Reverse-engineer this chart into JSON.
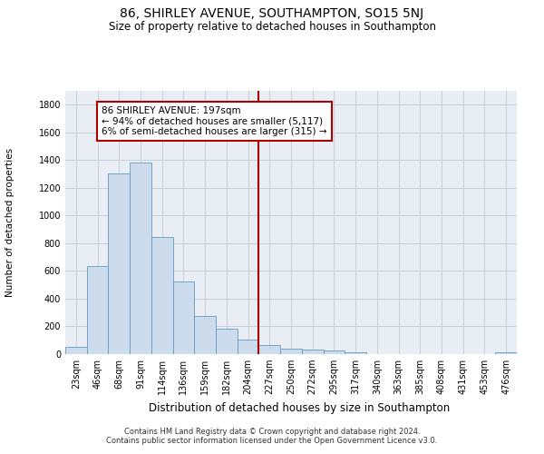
{
  "title": "86, SHIRLEY AVENUE, SOUTHAMPTON, SO15 5NJ",
  "subtitle": "Size of property relative to detached houses in Southampton",
  "xlabel": "Distribution of detached houses by size in Southampton",
  "ylabel": "Number of detached properties",
  "bin_labels": [
    "23sqm",
    "46sqm",
    "68sqm",
    "91sqm",
    "114sqm",
    "136sqm",
    "159sqm",
    "182sqm",
    "204sqm",
    "227sqm",
    "250sqm",
    "272sqm",
    "295sqm",
    "317sqm",
    "340sqm",
    "363sqm",
    "385sqm",
    "408sqm",
    "431sqm",
    "453sqm",
    "476sqm"
  ],
  "bar_values": [
    50,
    635,
    1305,
    1380,
    845,
    525,
    275,
    182,
    105,
    65,
    38,
    35,
    28,
    15,
    0,
    0,
    0,
    0,
    0,
    0,
    15
  ],
  "bar_color": "#ccdcec",
  "bar_edgecolor": "#6699bb",
  "vline_x": 8.5,
  "vline_color": "#aa0000",
  "annotation_text": "86 SHIRLEY AVENUE: 197sqm\n← 94% of detached houses are smaller (5,117)\n6% of semi-detached houses are larger (315) →",
  "annotation_box_color": "#aa0000",
  "ylim": [
    0,
    1900
  ],
  "yticks": [
    0,
    200,
    400,
    600,
    800,
    1000,
    1200,
    1400,
    1600,
    1800
  ],
  "grid_color": "#c8d0d8",
  "background_color": "#e8eef4",
  "footer_text": "Contains HM Land Registry data © Crown copyright and database right 2024.\nContains public sector information licensed under the Open Government Licence v3.0.",
  "title_fontsize": 10,
  "subtitle_fontsize": 8.5,
  "xlabel_fontsize": 8.5,
  "ylabel_fontsize": 7.5,
  "annotation_fontsize": 7.5,
  "footer_fontsize": 6.0,
  "tick_fontsize": 7.0
}
